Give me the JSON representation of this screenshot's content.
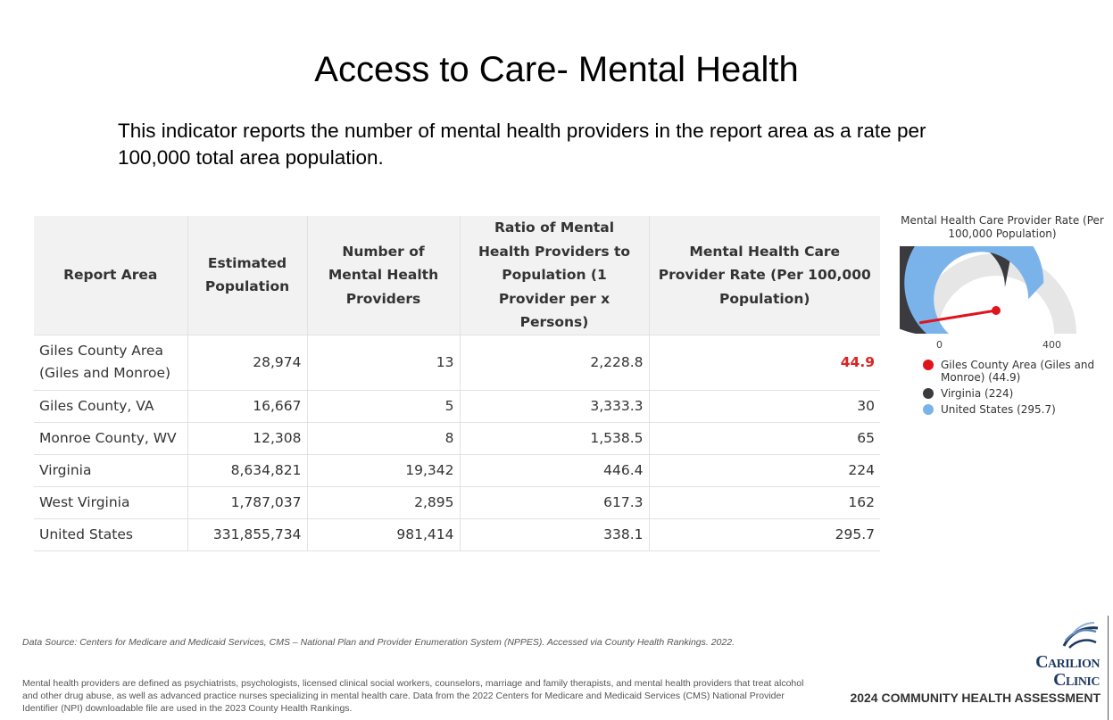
{
  "title": "Access to Care- Mental Health",
  "subtitle": "This indicator reports the number of mental health providers in the report area as a rate per 100,000 total area population.",
  "table": {
    "headers": [
      "Report Area",
      "Estimated Population",
      "Number of Mental Health Providers",
      "Ratio of Mental Health Providers to Population (1 Provider per x Persons)",
      "Mental Health Care Provider Rate (Per 100,000 Population)"
    ],
    "rows": [
      {
        "area": "Giles County Area (Giles and Monroe)",
        "population": "28,974",
        "providers": "13",
        "ratio": "2,228.8",
        "rate": "44.9"
      },
      {
        "area": "Giles County, VA",
        "population": "16,667",
        "providers": "5",
        "ratio": "3,333.3",
        "rate": "30"
      },
      {
        "area": "Monroe County, WV",
        "population": "12,308",
        "providers": "8",
        "ratio": "1,538.5",
        "rate": "65"
      },
      {
        "area": "Virginia",
        "population": "8,634,821",
        "providers": "19,342",
        "ratio": "446.4",
        "rate": "224"
      },
      {
        "area": "West Virginia",
        "population": "1,787,037",
        "providers": "2,895",
        "ratio": "617.3",
        "rate": "162"
      },
      {
        "area": "United States",
        "population": "331,855,734",
        "providers": "981,414",
        "ratio": "338.1",
        "rate": "295.7"
      }
    ]
  },
  "gauge": {
    "title": "Mental Health Care Provider Rate (Per 100,000 Population)",
    "min": 0,
    "max": 400,
    "min_label": "0",
    "max_label": "400",
    "colors": {
      "track": "#e6e6e6",
      "virginia": "#3a3a3f",
      "us": "#7ab3ea",
      "needle": "#e0141c"
    },
    "legend": [
      {
        "label": "Giles County Area (Giles and Monroe) (44.9)",
        "color": "#e0141c",
        "value": 44.9
      },
      {
        "label": "Virginia (224)",
        "color": "#3a3a3f",
        "value": 224
      },
      {
        "label": "United States (295.7)",
        "color": "#7ab3ea",
        "value": 295.7
      }
    ]
  },
  "footer": {
    "source": "Data Source: Centers for Medicare and Medicaid Services, CMS – National Plan and Provider Enumeration System (NPPES). Accessed via County Health Rankings. 2022.",
    "definition": "Mental health providers are defined as psychiatrists, psychologists, licensed clinical social workers, counselors, marriage and family therapists, and mental health providers that treat alcohol and other drug abuse, as well as advanced practice nurses specializing in mental health care. Data from the 2022 Centers for Medicare and Medicaid Services (CMS) National Provider Identifier (NPI) downloadable file are used in the 2023 County Health Rankings.",
    "logo_line1": "Carilion",
    "logo_line2": "Clinic",
    "assessment": "2024 COMMUNITY HEALTH ASSESSMENT"
  }
}
